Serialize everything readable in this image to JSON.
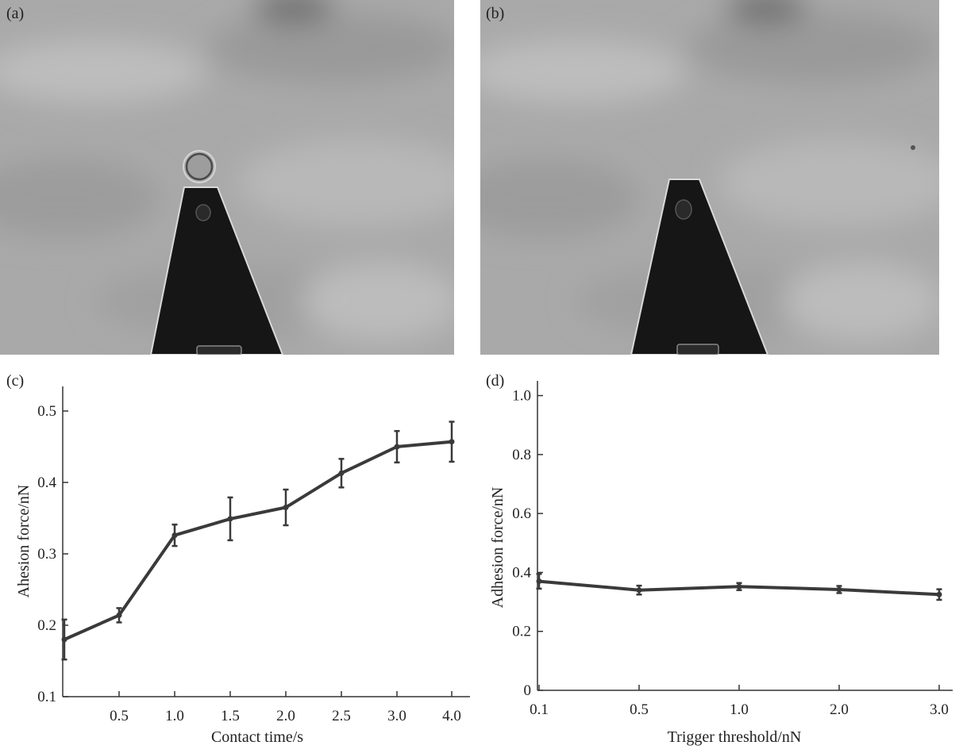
{
  "panels": {
    "a": {
      "label": "(a)"
    },
    "b": {
      "label": "(b)"
    },
    "c": {
      "label": "(c)"
    },
    "d": {
      "label": "(d)"
    }
  },
  "colors": {
    "line": "#3a3a3a",
    "photo_background": "#a8a8a8",
    "cantilever": "#161616"
  },
  "chart_data": [
    {
      "type": "line",
      "panel": "c",
      "xlabel": "Contact time/s",
      "ylabel": "Ahesion force/nN",
      "x": [
        0.1,
        0.5,
        1.0,
        1.5,
        2.0,
        2.5,
        3.0,
        4.0
      ],
      "x_tick_labels": [
        "0.5",
        "1.0",
        "1.5",
        "2.0",
        "2.5",
        "3.0",
        "4.0"
      ],
      "y_tick_labels": [
        "0.1",
        "0.2",
        "0.3",
        "0.4",
        "0.5"
      ],
      "ylim": [
        0.1,
        0.52
      ],
      "series": [
        {
          "values": [
            0.18,
            0.214,
            0.326,
            0.349,
            0.365,
            0.413,
            0.45,
            0.457
          ],
          "errors": [
            0.028,
            0.01,
            0.015,
            0.03,
            0.025,
            0.02,
            0.022,
            0.028
          ]
        }
      ],
      "grid": false
    },
    {
      "type": "line",
      "panel": "d",
      "xlabel": "Trigger threshold/nN",
      "ylabel": "Adhesion force/nN",
      "x": [
        0.1,
        0.5,
        1.0,
        2.0,
        3.0
      ],
      "x_tick_labels": [
        "0.1",
        "0.5",
        "1.0",
        "2.0",
        "3.0"
      ],
      "y_tick_labels": [
        "0",
        "0.2",
        "0.4",
        "0.6",
        "0.8",
        "1.0"
      ],
      "ylim": [
        0,
        1.05
      ],
      "series": [
        {
          "values": [
            0.37,
            0.34,
            0.352,
            0.342,
            0.325
          ],
          "errors": [
            0.025,
            0.015,
            0.012,
            0.012,
            0.018
          ]
        }
      ],
      "grid": false
    }
  ]
}
